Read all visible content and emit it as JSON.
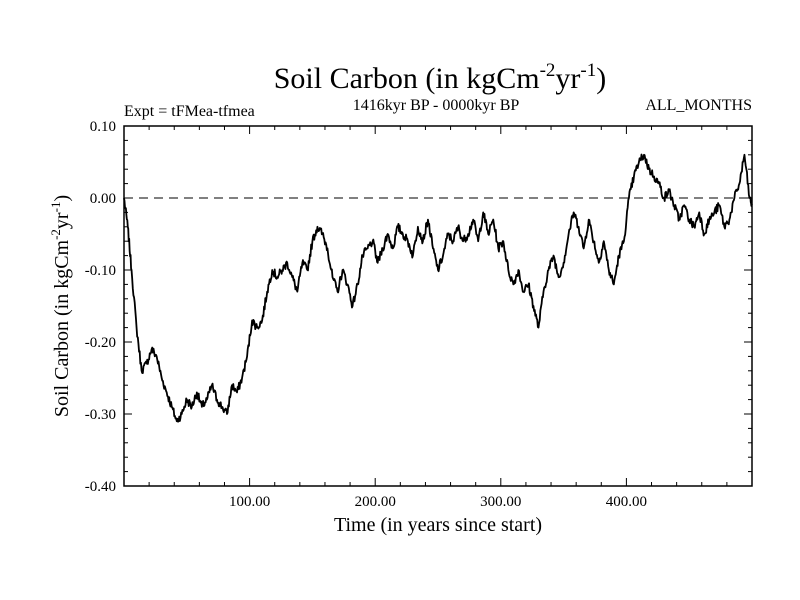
{
  "chart_data": {
    "type": "line",
    "title": {
      "prefix": "Soil Carbon (in kgCm",
      "sup1": "-2",
      "mid": "yr",
      "sup2": "-1",
      "suffix": ")"
    },
    "subtitle_left": "Expt = tFMea-tfmea",
    "subtitle_center": "1416kyr BP - 0000kyr BP",
    "subtitle_right": "ALL_MONTHS",
    "xlabel": "Time (in years since start)",
    "ylabel": {
      "prefix": "Soil Carbon (in kgCm",
      "sup1": "-2",
      "mid": "yr",
      "sup2": "-1",
      "suffix": ")"
    },
    "xlim": [
      0,
      500
    ],
    "ylim": [
      -0.4,
      0.1
    ],
    "x_ticks": [
      100,
      200,
      300,
      400
    ],
    "x_tick_labels": [
      "100.00",
      "200.00",
      "300.00",
      "400.00"
    ],
    "y_ticks": [
      -0.4,
      -0.3,
      -0.2,
      -0.1,
      0.0,
      0.1
    ],
    "y_tick_labels": [
      "-0.40",
      "-0.30",
      "-0.20",
      "-0.10",
      "0.00",
      "0.10"
    ],
    "reference_line": {
      "y": 0.0,
      "style": "dashed"
    },
    "series": [
      {
        "name": "Soil Carbon",
        "color": "#000000",
        "x": [
          0,
          3,
          6,
          10,
          14,
          18,
          22,
          26,
          30,
          34,
          38,
          42,
          46,
          50,
          54,
          58,
          62,
          66,
          70,
          74,
          78,
          82,
          86,
          90,
          94,
          98,
          102,
          106,
          110,
          114,
          118,
          122,
          126,
          130,
          134,
          138,
          142,
          146,
          150,
          154,
          158,
          162,
          166,
          170,
          174,
          178,
          182,
          186,
          190,
          194,
          198,
          202,
          206,
          210,
          214,
          218,
          222,
          226,
          230,
          234,
          238,
          242,
          246,
          250,
          254,
          258,
          262,
          266,
          270,
          274,
          278,
          282,
          286,
          290,
          294,
          298,
          302,
          306,
          310,
          314,
          318,
          322,
          326,
          330,
          334,
          338,
          342,
          346,
          350,
          354,
          358,
          362,
          366,
          370,
          374,
          378,
          382,
          386,
          390,
          394,
          398,
          402,
          406,
          410,
          414,
          418,
          422,
          426,
          430,
          434,
          438,
          442,
          446,
          450,
          454,
          458,
          462,
          466,
          470,
          474,
          478,
          482,
          486,
          490,
          494,
          498,
          500
        ],
        "values": [
          0.0,
          -0.04,
          -0.1,
          -0.18,
          -0.24,
          -0.23,
          -0.21,
          -0.22,
          -0.25,
          -0.27,
          -0.29,
          -0.31,
          -0.3,
          -0.28,
          -0.29,
          -0.27,
          -0.29,
          -0.28,
          -0.26,
          -0.28,
          -0.29,
          -0.3,
          -0.26,
          -0.27,
          -0.25,
          -0.22,
          -0.17,
          -0.18,
          -0.17,
          -0.13,
          -0.1,
          -0.11,
          -0.1,
          -0.09,
          -0.11,
          -0.13,
          -0.09,
          -0.1,
          -0.06,
          -0.04,
          -0.05,
          -0.07,
          -0.11,
          -0.13,
          -0.1,
          -0.12,
          -0.15,
          -0.12,
          -0.08,
          -0.07,
          -0.06,
          -0.09,
          -0.07,
          -0.05,
          -0.07,
          -0.04,
          -0.05,
          -0.06,
          -0.08,
          -0.04,
          -0.06,
          -0.03,
          -0.07,
          -0.1,
          -0.08,
          -0.05,
          -0.06,
          -0.04,
          -0.06,
          -0.05,
          -0.03,
          -0.06,
          -0.02,
          -0.05,
          -0.03,
          -0.07,
          -0.06,
          -0.1,
          -0.12,
          -0.1,
          -0.13,
          -0.12,
          -0.15,
          -0.18,
          -0.13,
          -0.1,
          -0.08,
          -0.11,
          -0.09,
          -0.05,
          -0.02,
          -0.04,
          -0.07,
          -0.03,
          -0.06,
          -0.09,
          -0.06,
          -0.1,
          -0.12,
          -0.08,
          -0.06,
          0.0,
          0.03,
          0.05,
          0.06,
          0.04,
          0.03,
          0.02,
          0.0,
          0.01,
          -0.01,
          -0.03,
          -0.01,
          -0.03,
          -0.04,
          -0.02,
          -0.05,
          -0.03,
          -0.02,
          -0.01,
          -0.04,
          -0.03,
          0.0,
          0.02,
          0.06,
          0.0,
          -0.01
        ]
      }
    ]
  }
}
